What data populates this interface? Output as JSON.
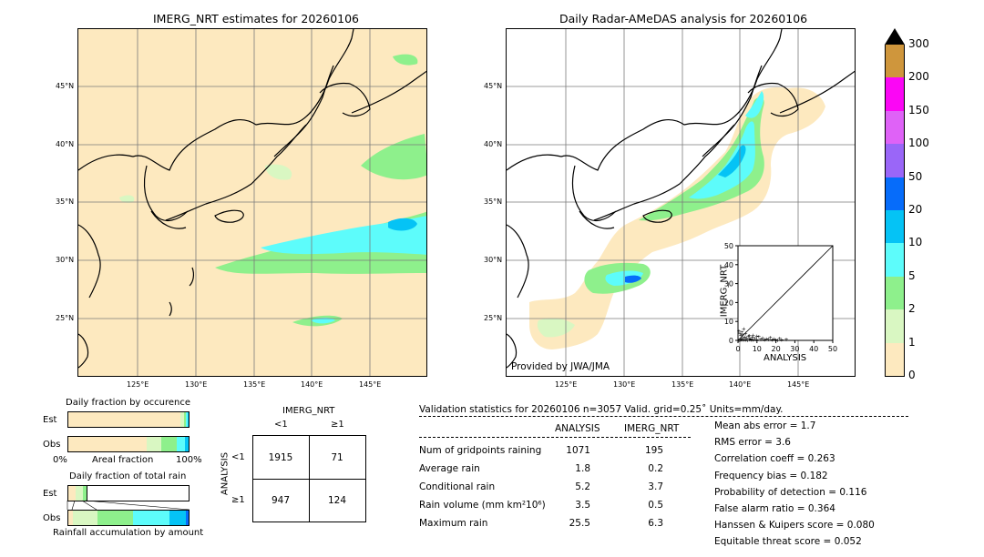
{
  "map1": {
    "title": "IMERG_NRT estimates for 20260106"
  },
  "map2": {
    "title": "Daily Radar-AMeDAS analysis for 20260106",
    "credit": "Provided by JWA/JMA"
  },
  "lat_labels": [
    "45°N",
    "40°N",
    "35°N",
    "30°N",
    "25°N"
  ],
  "lon_labels": [
    "125°E",
    "130°E",
    "135°E",
    "140°E",
    "145°E"
  ],
  "colorbar": {
    "ticks": [
      "0",
      "1",
      "2",
      "5",
      "10",
      "20",
      "50",
      "100",
      "150",
      "200",
      "300"
    ],
    "colors": [
      "#fde9bf",
      "#d9f7c2",
      "#8ef08c",
      "#5dfcfb",
      "#05c3f5",
      "#066cfa",
      "#9a66f8",
      "#df62f7",
      "#fb06f5",
      "#cf963c"
    ]
  },
  "chart_data": [
    {
      "type": "scatter",
      "title": "",
      "xlabel": "ANALYSIS",
      "ylabel": "IMERG_NRT",
      "xlim": [
        0,
        50
      ],
      "ylim": [
        0,
        50
      ],
      "xticks": [
        "0",
        "10",
        "20",
        "30",
        "40",
        "50"
      ],
      "yticks": [
        "0",
        "10",
        "20",
        "30",
        "40",
        "50"
      ],
      "points": [
        [
          0.5,
          0.2
        ],
        [
          1,
          0.3
        ],
        [
          1.5,
          0.8
        ],
        [
          2,
          0.5
        ],
        [
          2.5,
          1.2
        ],
        [
          3,
          0.4
        ],
        [
          3.5,
          2.0
        ],
        [
          4,
          0.6
        ],
        [
          4.5,
          1.5
        ],
        [
          5,
          0.3
        ],
        [
          5.5,
          2.5
        ],
        [
          6,
          0.8
        ],
        [
          6.5,
          1.0
        ],
        [
          7,
          0.4
        ],
        [
          7.5,
          1.8
        ],
        [
          8,
          0.6
        ],
        [
          9,
          1.2
        ],
        [
          10,
          0.5
        ],
        [
          11,
          2.2
        ],
        [
          12,
          0.8
        ],
        [
          13,
          1.5
        ],
        [
          14,
          0.4
        ],
        [
          15,
          1.0
        ],
        [
          16,
          0.7
        ],
        [
          17,
          1.8
        ],
        [
          18,
          0.5
        ],
        [
          19,
          0.9
        ],
        [
          20,
          0.6
        ],
        [
          21,
          0.3
        ],
        [
          22,
          1.1
        ],
        [
          23,
          0.4
        ],
        [
          25.5,
          0.8
        ],
        [
          1,
          3.5
        ],
        [
          2,
          4.5
        ],
        [
          0.5,
          5.0
        ],
        [
          3,
          6.3
        ],
        [
          1.5,
          2.8
        ],
        [
          2.5,
          3.2
        ],
        [
          4,
          3.8
        ],
        [
          6,
          2.6
        ],
        [
          8,
          3.0
        ],
        [
          10,
          2.4
        ]
      ]
    },
    {
      "type": "table",
      "title": "Validation statistics for 20260106  n=3057 Valid. grid=0.25˚ Units=mm/day.",
      "columns": [
        "ANALYSIS",
        "IMERG_NRT"
      ],
      "rows": [
        {
          "label": "Num of gridpoints raining",
          "analysis": "1071",
          "imerg": "195"
        },
        {
          "label": "Average rain",
          "analysis": "1.8",
          "imerg": "0.2"
        },
        {
          "label": "Conditional rain",
          "analysis": "5.2",
          "imerg": "3.7"
        },
        {
          "label": "Rain volume (mm km²10⁶)",
          "analysis": "3.5",
          "imerg": "0.5"
        },
        {
          "label": "Maximum rain",
          "analysis": "25.5",
          "imerg": "6.3"
        }
      ],
      "scores": [
        {
          "label": "Mean abs error =",
          "value": "1.7"
        },
        {
          "label": "RMS error =",
          "value": "3.6"
        },
        {
          "label": "Correlation coeff =",
          "value": "0.263"
        },
        {
          "label": "Frequency bias =",
          "value": "0.182"
        },
        {
          "label": "Probability of detection =",
          "value": "0.116"
        },
        {
          "label": "False alarm ratio =",
          "value": "0.364"
        },
        {
          "label": "Hanssen & Kuipers score =",
          "value": "0.080"
        },
        {
          "label": "Equitable threat score =",
          "value": "0.052"
        }
      ]
    },
    {
      "type": "table",
      "title": "IMERG_NRT",
      "col_labels": [
        "<1",
        "≥1"
      ],
      "row_title": "ANALYSIS",
      "row_labels": [
        "<1",
        "≥1"
      ],
      "values": [
        [
          "1915",
          "71"
        ],
        [
          "947",
          "124"
        ]
      ]
    },
    {
      "type": "bar",
      "title": "Daily fraction by occurence",
      "categories": [
        "Est",
        "Obs"
      ],
      "x_left": "0%",
      "x_right": "100%",
      "xlabel": "Areal fraction",
      "segments_fraction": [
        [
          0.935,
          0.025,
          0.02,
          0.01,
          0.01
        ],
        [
          0.65,
          0.12,
          0.13,
          0.07,
          0.03
        ]
      ]
    },
    {
      "type": "bar",
      "title": "Daily fraction of total rain",
      "categories": [
        "Est",
        "Obs"
      ],
      "xlabel": "Rainfall accumulation by amount",
      "segments_fraction": [
        [
          0.06,
          0.06,
          0.03
        ],
        [
          0.04,
          0.2,
          0.3,
          0.3,
          0.14,
          0.02
        ]
      ]
    }
  ]
}
